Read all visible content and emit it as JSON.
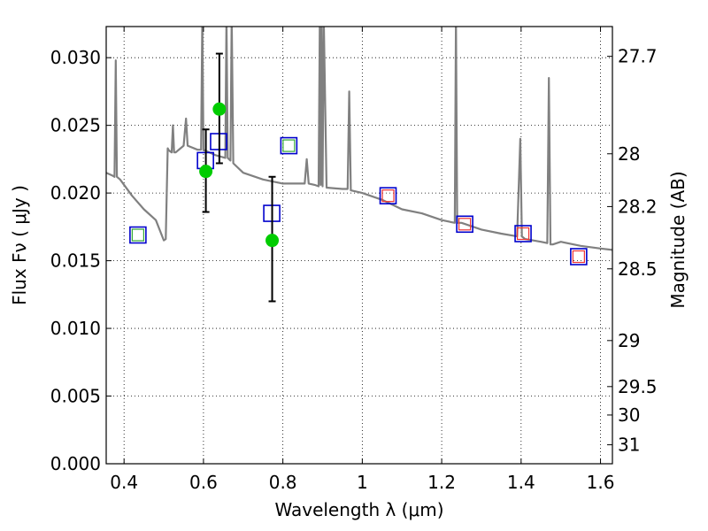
{
  "chart_data": {
    "type": "scatter",
    "title": "",
    "xlabel": "Wavelength  λ (μm)",
    "ylabel": "Flux  Fν  ( μJy )",
    "y2label": "Magnitude (AB)",
    "xlim": [
      0.355,
      1.63
    ],
    "ylim": [
      0.0,
      0.0323
    ],
    "grid": true,
    "x_ticks": [
      0.4,
      0.6,
      0.8,
      1.0,
      1.2,
      1.4,
      1.6
    ],
    "x_tick_labels": [
      "0.4",
      "0.6",
      "0.8",
      "1",
      "1.2",
      "1.4",
      "1.6"
    ],
    "y_ticks": [
      0.0,
      0.005,
      0.01,
      0.015,
      0.02,
      0.025,
      0.03
    ],
    "y_tick_labels": [
      "0.000",
      "0.005",
      "0.010",
      "0.015",
      "0.020",
      "0.025",
      "0.030"
    ],
    "right_axis_ticks": [
      {
        "label": "27.7",
        "flux": 0.0301
      },
      {
        "label": "28",
        "flux": 0.0229
      },
      {
        "label": "28.2",
        "flux": 0.019
      },
      {
        "label": "28.5",
        "flux": 0.0144
      },
      {
        "label": "29",
        "flux": 0.0091
      },
      {
        "label": "29.5",
        "flux": 0.0057
      },
      {
        "label": "30",
        "flux": 0.0036
      },
      {
        "label": "31",
        "flux": 0.0014
      }
    ],
    "colors": {
      "spectrum": "#808080",
      "square_outer": "#0000cc",
      "square_inner_green": "#33aa33",
      "square_inner_red": "#ee3333",
      "measurement": "#00cc00",
      "errorbar": "#000000",
      "grid": "#000000"
    },
    "series": [
      {
        "kind": "model-spectrum",
        "x": [
          0.355,
          0.37,
          0.376,
          0.379,
          0.382,
          0.39,
          0.42,
          0.45,
          0.48,
          0.5,
          0.505,
          0.51,
          0.512,
          0.515,
          0.52,
          0.523,
          0.526,
          0.53,
          0.55,
          0.556,
          0.56,
          0.585,
          0.594,
          0.597,
          0.6,
          0.63,
          0.655,
          0.658,
          0.661,
          0.668,
          0.671,
          0.675,
          0.7,
          0.75,
          0.8,
          0.855,
          0.86,
          0.865,
          0.88,
          0.89,
          0.893,
          0.895,
          0.897,
          0.9,
          0.903,
          0.91,
          0.95,
          0.963,
          0.967,
          0.971,
          1.0,
          1.05,
          1.1,
          1.15,
          1.2,
          1.233,
          1.236,
          1.239,
          1.25,
          1.3,
          1.35,
          1.39,
          1.398,
          1.402,
          1.41,
          1.45,
          1.466,
          1.47,
          1.474,
          1.48,
          1.5,
          1.55,
          1.6,
          1.63
        ],
        "y": [
          0.0215,
          0.0213,
          0.0212,
          0.0298,
          0.0212,
          0.021,
          0.0198,
          0.0188,
          0.018,
          0.0165,
          0.0166,
          0.0233,
          0.0232,
          0.0231,
          0.023,
          0.025,
          0.023,
          0.023,
          0.0235,
          0.0255,
          0.0235,
          0.0232,
          0.0232,
          0.033,
          0.0232,
          0.0228,
          0.0226,
          0.033,
          0.0226,
          0.0224,
          0.033,
          0.0222,
          0.0215,
          0.021,
          0.0207,
          0.0207,
          0.0225,
          0.0207,
          0.0206,
          0.0205,
          0.033,
          0.0206,
          0.033,
          0.0205,
          0.033,
          0.0204,
          0.0203,
          0.0203,
          0.0275,
          0.0202,
          0.02,
          0.0195,
          0.0188,
          0.0185,
          0.018,
          0.0178,
          0.033,
          0.0178,
          0.0178,
          0.0173,
          0.017,
          0.0168,
          0.024,
          0.0168,
          0.0166,
          0.0164,
          0.0163,
          0.0285,
          0.0162,
          0.0162,
          0.0164,
          0.0161,
          0.0159,
          0.0158
        ]
      },
      {
        "kind": "model-photometry-square-green",
        "x": [
          0.435,
          0.815
        ],
        "y": [
          0.0169,
          0.0235
        ]
      },
      {
        "kind": "model-photometry-square-red",
        "x": [
          1.065,
          1.258,
          1.405,
          1.545
        ],
        "y": [
          0.0198,
          0.0177,
          0.017,
          0.0153
        ]
      },
      {
        "kind": "model-photometry-square-blue",
        "x": [
          0.605,
          0.638,
          0.772
        ],
        "y": [
          0.0224,
          0.0238,
          0.0185
        ]
      },
      {
        "kind": "observed-flux",
        "x": [
          0.606,
          0.64,
          0.773
        ],
        "y": [
          0.0216,
          0.0262,
          0.0165
        ],
        "err_low": [
          0.0186,
          0.0222,
          0.012
        ],
        "err_high": [
          0.0247,
          0.0303,
          0.0212
        ]
      }
    ]
  }
}
